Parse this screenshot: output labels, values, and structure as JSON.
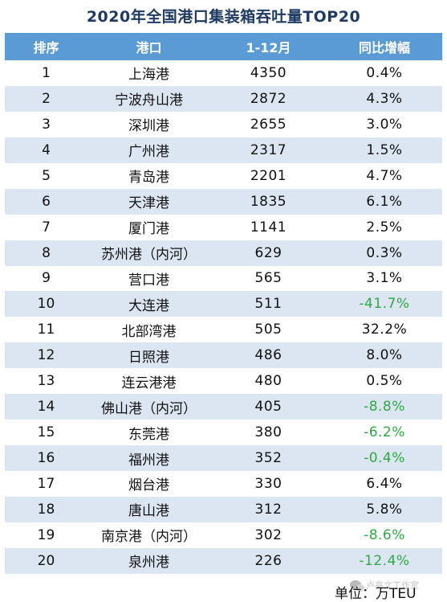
{
  "title": "2020年全国港口集装箱吞吐量TOP20",
  "headers": [
    "排序",
    "港口",
    "1-12月",
    "同比增幅"
  ],
  "colors": {
    "header_bg": "#5b9bd5",
    "alt_row_bg": "#dce6f2",
    "title": "#1f3b63",
    "negative_growth": "#2eaa44"
  },
  "rows": [
    {
      "rank": "1",
      "port": "上海港",
      "volume": "4350",
      "yoy": "0.4%"
    },
    {
      "rank": "2",
      "port": "宁波舟山港",
      "volume": "2872",
      "yoy": "4.3%"
    },
    {
      "rank": "3",
      "port": "深圳港",
      "volume": "2655",
      "yoy": "3.0%"
    },
    {
      "rank": "4",
      "port": "广州港",
      "volume": "2317",
      "yoy": "1.5%"
    },
    {
      "rank": "5",
      "port": "青岛港",
      "volume": "2201",
      "yoy": "4.7%"
    },
    {
      "rank": "6",
      "port": "天津港",
      "volume": "1835",
      "yoy": "6.1%"
    },
    {
      "rank": "7",
      "port": "厦门港",
      "volume": "1141",
      "yoy": "2.5%"
    },
    {
      "rank": "8",
      "port": "苏州港（内河）",
      "volume": "629",
      "yoy": "0.3%"
    },
    {
      "rank": "9",
      "port": "营口港",
      "volume": "565",
      "yoy": "3.1%"
    },
    {
      "rank": "10",
      "port": "大连港",
      "volume": "511",
      "yoy": "-41.7%"
    },
    {
      "rank": "11",
      "port": "北部湾港",
      "volume": "505",
      "yoy": "32.2%"
    },
    {
      "rank": "12",
      "port": "日照港",
      "volume": "486",
      "yoy": "8.0%"
    },
    {
      "rank": "13",
      "port": "连云港港",
      "volume": "480",
      "yoy": "0.5%"
    },
    {
      "rank": "14",
      "port": "佛山港（内河）",
      "volume": "405",
      "yoy": "-8.8%"
    },
    {
      "rank": "15",
      "port": "东莞港",
      "volume": "380",
      "yoy": "-6.2%"
    },
    {
      "rank": "16",
      "port": "福州港",
      "volume": "352",
      "yoy": "-0.4%"
    },
    {
      "rank": "17",
      "port": "烟台港",
      "volume": "330",
      "yoy": "6.4%"
    },
    {
      "rank": "18",
      "port": "唐山港",
      "volume": "312",
      "yoy": "5.8%"
    },
    {
      "rank": "19",
      "port": "南京港（内河）",
      "volume": "302",
      "yoy": "-8.6%"
    },
    {
      "rank": "20",
      "port": "泉州港",
      "volume": "226",
      "yoy": "-12.4%"
    }
  ],
  "footer": {
    "unit": "单位：万TEU",
    "watermark": "卢亮文工作室",
    "watermark_icon": "wechat-icon"
  }
}
